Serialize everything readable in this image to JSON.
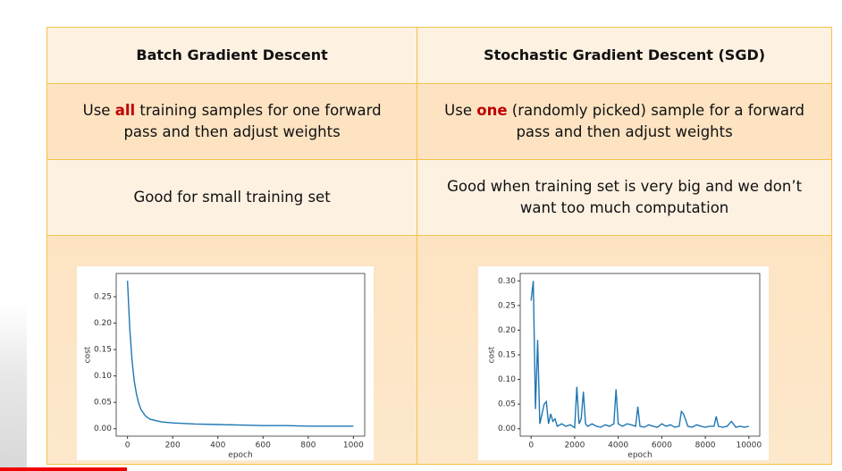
{
  "table": {
    "headers": [
      "Batch Gradient Descent",
      "Stochastic Gradient Descent (SGD)"
    ],
    "rows": [
      [
        [
          "Use ",
          "all",
          " training samples for one forward pass and then adjust weights"
        ],
        [
          "Use ",
          "one",
          " (randomly picked) sample for a forward pass and then adjust weights"
        ]
      ],
      [
        "Good for small training set",
        "Good when training set is very big and we don’t want too much computation"
      ]
    ]
  },
  "chart_data": [
    {
      "type": "line",
      "xlabel": "epoch",
      "ylabel": "cost",
      "color": "#1f77b4",
      "x": [
        0,
        10,
        20,
        30,
        40,
        50,
        60,
        80,
        100,
        150,
        200,
        300,
        400,
        500,
        600,
        700,
        800,
        900,
        1000
      ],
      "values": [
        0.28,
        0.19,
        0.13,
        0.09,
        0.065,
        0.048,
        0.036,
        0.024,
        0.018,
        0.013,
        0.011,
        0.009,
        0.008,
        0.007,
        0.006,
        0.006,
        0.005,
        0.005,
        0.005
      ],
      "xlim": [
        -50,
        1050
      ],
      "ylim": [
        -0.014,
        0.294
      ],
      "xticks": [
        0,
        200,
        400,
        600,
        800,
        1000
      ],
      "yticks": [
        {
          "value": 0,
          "label": "0.00"
        },
        {
          "value": 0.05,
          "label": "0.05"
        },
        {
          "value": 0.1,
          "label": "0.10"
        },
        {
          "value": 0.15,
          "label": "0.15"
        },
        {
          "value": 0.2,
          "label": "0.20"
        },
        {
          "value": 0.25,
          "label": "0.25"
        }
      ]
    },
    {
      "type": "line",
      "xlabel": "epoch",
      "ylabel": "cost",
      "color": "#1f77b4",
      "x": [
        0,
        100,
        200,
        300,
        400,
        500,
        600,
        700,
        800,
        900,
        1000,
        1100,
        1200,
        1400,
        1600,
        1800,
        2000,
        2100,
        2200,
        2300,
        2400,
        2500,
        2600,
        2800,
        3000,
        3200,
        3400,
        3600,
        3800,
        3900,
        4000,
        4200,
        4400,
        4600,
        4800,
        4900,
        5000,
        5200,
        5400,
        5600,
        5800,
        6000,
        6200,
        6400,
        6600,
        6800,
        6900,
        7000,
        7200,
        7400,
        7600,
        7800,
        8000,
        8200,
        8400,
        8500,
        8600,
        8800,
        9000,
        9200,
        9400,
        9600,
        9800,
        10000
      ],
      "values": [
        0.26,
        0.3,
        0.04,
        0.18,
        0.01,
        0.03,
        0.05,
        0.055,
        0.01,
        0.03,
        0.015,
        0.02,
        0.005,
        0.01,
        0.005,
        0.008,
        0.002,
        0.085,
        0.01,
        0.02,
        0.075,
        0.01,
        0.005,
        0.01,
        0.005,
        0.003,
        0.008,
        0.005,
        0.01,
        0.08,
        0.01,
        0.005,
        0.01,
        0.008,
        0.005,
        0.045,
        0.005,
        0.003,
        0.008,
        0.005,
        0.003,
        0.01,
        0.005,
        0.008,
        0.003,
        0.005,
        0.035,
        0.03,
        0.005,
        0.003,
        0.008,
        0.005,
        0.003,
        0.005,
        0.005,
        0.025,
        0.005,
        0.003,
        0.005,
        0.015,
        0.003,
        0.005,
        0.003,
        0.005
      ],
      "xlim": [
        -500,
        10500
      ],
      "ylim": [
        -0.015,
        0.315
      ],
      "xticks": [
        0,
        2000,
        4000,
        6000,
        8000,
        10000
      ],
      "yticks": [
        {
          "value": 0,
          "label": "0.00"
        },
        {
          "value": 0.05,
          "label": "0.05"
        },
        {
          "value": 0.1,
          "label": "0.10"
        },
        {
          "value": 0.15,
          "label": "0.15"
        },
        {
          "value": 0.2,
          "label": "0.20"
        },
        {
          "value": 0.25,
          "label": "0.25"
        },
        {
          "value": 0.3,
          "label": "0.30"
        }
      ]
    }
  ]
}
